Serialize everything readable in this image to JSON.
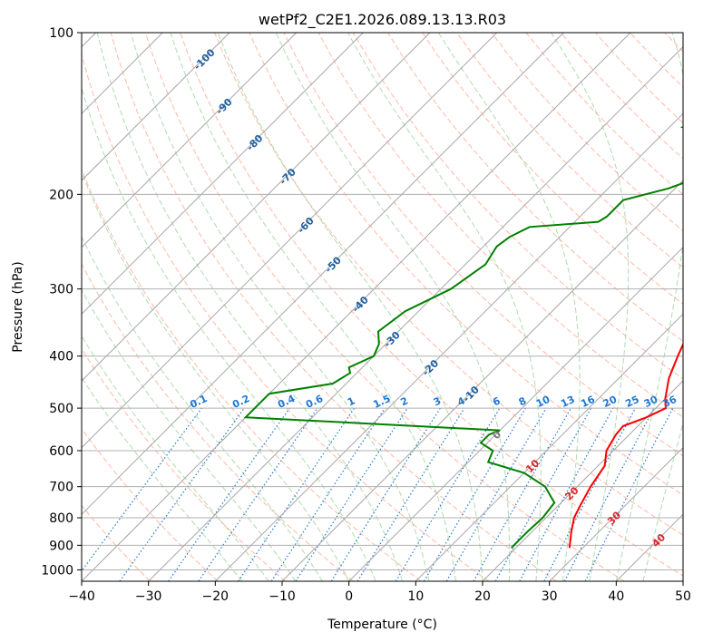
{
  "chart_data": {
    "type": "line",
    "title": "wetPf2_C2E1.2026.089.13.13.R03",
    "xlabel": "Temperature (°C)",
    "ylabel": "Pressure (hPa)",
    "xlim": [
      -40,
      50
    ],
    "ylim": [
      1050,
      100
    ],
    "y_scale": "log",
    "grid": true,
    "x_ticks": [
      "−40",
      "−30",
      "−20",
      "−10",
      "0",
      "10",
      "20",
      "30",
      "40",
      "50"
    ],
    "y_ticks": [
      "100",
      "200",
      "300",
      "400",
      "500",
      "600",
      "700",
      "800",
      "900",
      "1000"
    ],
    "series": [
      {
        "color": "#ff0000",
        "p": [
          100,
          120,
          140,
          160,
          180,
          200,
          230,
          260,
          290,
          320,
          360,
          400,
          440,
          480,
          500,
          520,
          540,
          560,
          600,
          640,
          700,
          760,
          800,
          850,
          910
        ],
        "t": [
          5,
          6,
          8,
          7,
          6,
          7,
          7,
          8,
          9,
          11,
          13.5,
          15.5,
          17.5,
          20,
          21.5,
          20,
          17.8,
          18,
          19,
          21,
          22,
          23.3,
          24.2,
          25.9,
          28
        ]
      },
      {
        "color": "#008000",
        "p": [
          100,
          110,
          125,
          140,
          150,
          160,
          170,
          180,
          195,
          205,
          220,
          225,
          230,
          240,
          250,
          270,
          300,
          330,
          360,
          380,
          400,
          410,
          420,
          430,
          450,
          470,
          520,
          550,
          560,
          580,
          600,
          630,
          660,
          700,
          750,
          800,
          850,
          910
        ],
        "t": [
          -0.5,
          -2,
          -5,
          -13,
          -18,
          -10,
          -6,
          -6,
          -11,
          -16,
          -16,
          -16.5,
          -26,
          -27.5,
          -28,
          -27,
          -28.5,
          -32,
          -33,
          -31,
          -30,
          -31,
          -32,
          -31,
          -32,
          -40,
          -40,
          0,
          -1,
          -1,
          2,
          3,
          10,
          15.2,
          19,
          19.5,
          19.3,
          19.3
        ]
      }
    ],
    "iso_labels": {
      "dry_adiabat_labels": [
        "-100",
        "-90",
        "-80",
        "-70",
        "-60",
        "-50",
        "-40",
        "-30",
        "-20",
        "-10",
        "0",
        "10",
        "20",
        "30",
        "40"
      ],
      "mixing_ratio_labels": [
        "0.1",
        "0.2",
        "0.4",
        "0.6",
        "1",
        "1.5",
        "2",
        "3",
        "4",
        "6",
        "8",
        "10",
        "13",
        "16",
        "20",
        "25",
        "30",
        "36"
      ]
    },
    "colors": {
      "temperature": "#ff0000",
      "dewpoint": "#008000",
      "isotherm": "#a6a6a6",
      "dry_adiabat": "#ff9b80",
      "moist_adiabat": "#8fca8f",
      "mixing_ratio": "#1f77d4",
      "dry_label": "#1f5f9e",
      "warm_label": "#d62728"
    }
  }
}
